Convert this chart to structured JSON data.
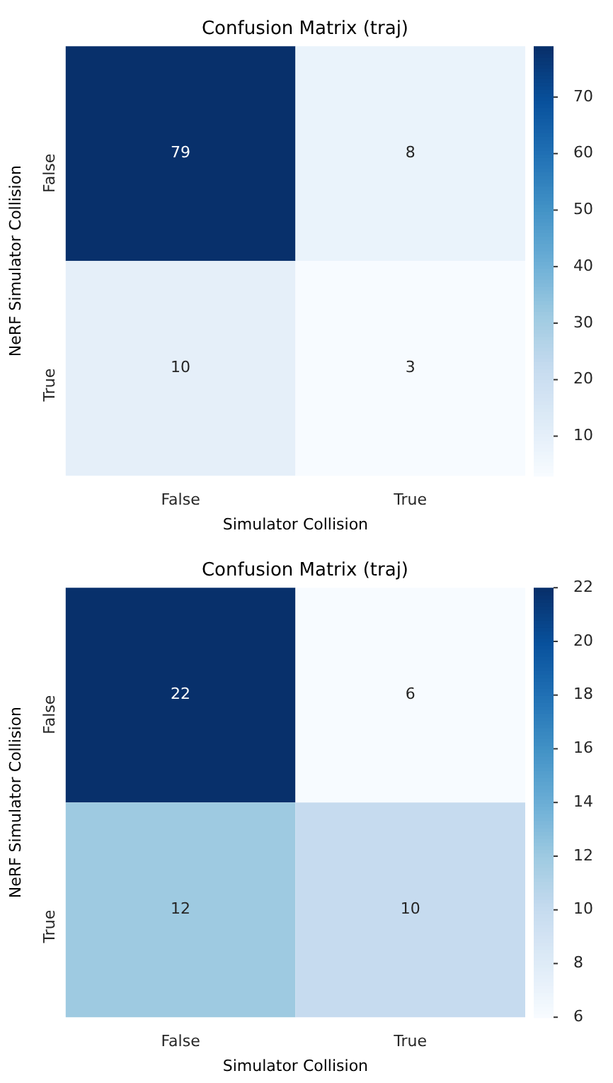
{
  "chart_data": [
    {
      "type": "heatmap",
      "title": "Confusion Matrix (traj)",
      "xlabel": "Simulator Collision",
      "ylabel": "NeRF Simulator Collision",
      "categories": [
        "False",
        "True"
      ],
      "y_categories": [
        "False",
        "True"
      ],
      "cells": [
        [
          79,
          8
        ],
        [
          10,
          3
        ]
      ],
      "clim": [
        3,
        79
      ],
      "cticks": [
        10,
        20,
        30,
        40,
        50,
        60,
        70
      ],
      "data_labels": true
    },
    {
      "type": "heatmap",
      "title": "Confusion Matrix (traj)",
      "xlabel": "Simulator Collision",
      "ylabel": "NeRF Simulator Collision",
      "categories": [
        "False",
        "True"
      ],
      "y_categories": [
        "False",
        "True"
      ],
      "cells": [
        [
          22,
          6
        ],
        [
          12,
          10
        ]
      ],
      "clim": [
        6,
        22
      ],
      "cticks": [
        6,
        8,
        10,
        12,
        14,
        16,
        18,
        20,
        22
      ],
      "data_labels": true
    }
  ]
}
